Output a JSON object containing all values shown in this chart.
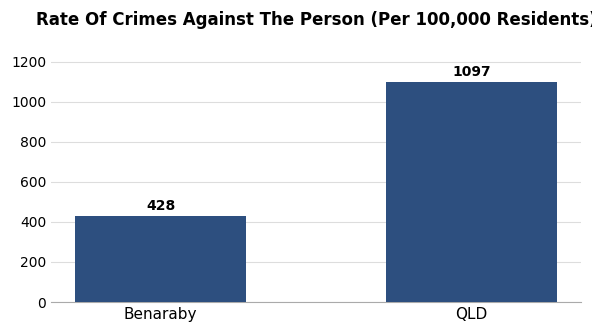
{
  "categories": [
    "Benaraby",
    "QLD"
  ],
  "values": [
    428,
    1097
  ],
  "bar_color": "#2d4f7f",
  "title": "Rate Of Crimes Against The Person (Per 100,000 Residents)",
  "title_fontsize": 12,
  "label_fontsize": 11,
  "value_fontsize": 10,
  "tick_fontsize": 10,
  "ylim": [
    0,
    1300
  ],
  "yticks": [
    0,
    200,
    400,
    600,
    800,
    1000,
    1200
  ],
  "background_color": "#ffffff"
}
